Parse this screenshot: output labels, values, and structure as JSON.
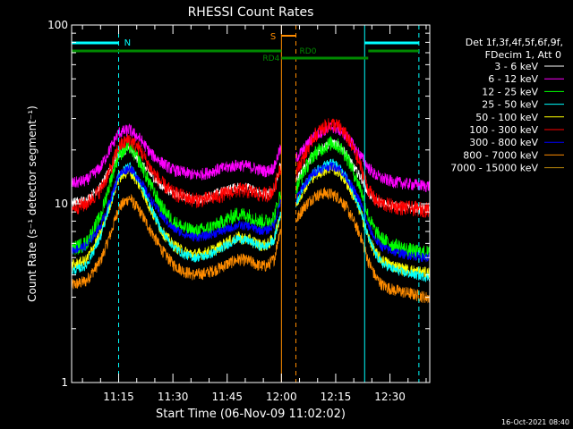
{
  "chart_data": {
    "type": "line",
    "title": "RHESSI Count Rates",
    "xlabel": "Start Time (06-Nov-09 11:02:02)",
    "ylabel": "Count Rate (s⁻¹ detector segment⁻¹)",
    "y_scale": "log",
    "ylim": [
      1,
      100
    ],
    "xlim_minutes": [
      662,
      761
    ],
    "y_ticks": [
      {
        "value": 1,
        "label": "1"
      },
      {
        "value": 10,
        "label": "10"
      },
      {
        "value": 100,
        "label": "100"
      }
    ],
    "x_ticks": [
      {
        "minute": 675,
        "label": "11:15"
      },
      {
        "minute": 690,
        "label": "11:30"
      },
      {
        "minute": 705,
        "label": "11:45"
      },
      {
        "minute": 720,
        "label": "12:00"
      },
      {
        "minute": 735,
        "label": "12:15"
      },
      {
        "minute": 750,
        "label": "12:30"
      }
    ],
    "gaps_minutes": [
      [
        720,
        724
      ]
    ],
    "legend": {
      "placement": "right",
      "header": [
        "Det 1f,3f,4f,5f,6f,9f,",
        "FDecim 1, Att 0"
      ]
    },
    "series": [
      {
        "name": "3 - 6 keV",
        "color": "#ffffff",
        "x": [
          662,
          666,
          670,
          673,
          675,
          678,
          681,
          684,
          687,
          690,
          693,
          696,
          699,
          702,
          705,
          708,
          711,
          714,
          716,
          718,
          719.5,
          724,
          726,
          729,
          732,
          734,
          736,
          738,
          740,
          742,
          744,
          746,
          748,
          751,
          754,
          757,
          760
        ],
        "y": [
          10.2,
          10.5,
          12.5,
          16,
          19,
          20.5,
          17,
          14.5,
          12.5,
          11.5,
          11,
          10.5,
          10.7,
          11.5,
          12,
          12.5,
          12.3,
          11.5,
          11.3,
          12,
          16,
          13.5,
          15.5,
          19,
          21,
          22,
          21,
          19,
          16,
          14,
          11.5,
          10.5,
          10,
          9.8,
          9.6,
          9.5,
          9.3
        ]
      },
      {
        "name": "6 - 12 keV",
        "color": "#ff00ff",
        "x": [
          662,
          666,
          670,
          673,
          675,
          678,
          681,
          684,
          687,
          690,
          693,
          696,
          699,
          702,
          705,
          708,
          711,
          714,
          716,
          718,
          719.5,
          724,
          726,
          729,
          732,
          734,
          736,
          738,
          740,
          742,
          744,
          746,
          748,
          751,
          754,
          757,
          760
        ],
        "y": [
          13,
          13.5,
          16,
          21,
          25,
          26,
          23,
          19,
          17,
          15.5,
          15,
          14.5,
          14.8,
          15.5,
          16,
          16.5,
          16.2,
          15.5,
          15.2,
          16,
          20,
          18,
          20,
          24,
          26,
          27,
          26,
          24,
          21,
          18.5,
          16,
          14.5,
          13.8,
          13.3,
          13,
          12.8,
          12.6
        ]
      },
      {
        "name": "12 - 25 keV",
        "color": "#00ff00",
        "x": [
          662,
          666,
          670,
          673,
          675,
          678,
          681,
          684,
          687,
          690,
          693,
          696,
          699,
          702,
          705,
          708,
          711,
          714,
          716,
          718,
          719.5,
          724,
          726,
          729,
          732,
          734,
          736,
          738,
          740,
          742,
          744,
          746,
          748,
          751,
          754,
          757,
          760
        ],
        "y": [
          5.6,
          6,
          8.5,
          14,
          19,
          21,
          17,
          12.5,
          9.5,
          8,
          7.3,
          7,
          7.2,
          7.6,
          8.2,
          8.8,
          8.6,
          8,
          8,
          8.5,
          11,
          12,
          15,
          19,
          21,
          22,
          21,
          18.5,
          15,
          12,
          8.5,
          7,
          6.3,
          5.9,
          5.6,
          5.4,
          5.3
        ]
      },
      {
        "name": "25 - 50 keV",
        "color": "#00ffff",
        "x": [
          662,
          666,
          670,
          673,
          675,
          678,
          681,
          684,
          687,
          690,
          693,
          696,
          699,
          702,
          705,
          708,
          711,
          714,
          716,
          718,
          719.5,
          724,
          726,
          729,
          732,
          734,
          736,
          738,
          740,
          742,
          744,
          746,
          748,
          751,
          754,
          757,
          760
        ],
        "y": [
          4.2,
          4.5,
          6.5,
          10.5,
          14.5,
          16.5,
          13,
          9.5,
          7,
          5.8,
          5.2,
          5,
          5.1,
          5.4,
          5.9,
          6.4,
          6.2,
          5.8,
          5.8,
          6.3,
          8.5,
          10,
          12.5,
          15,
          16.5,
          17,
          16,
          14,
          11.5,
          9,
          6.5,
          5.2,
          4.6,
          4.3,
          4.1,
          4,
          3.9
        ]
      },
      {
        "name": "50 - 100 keV",
        "color": "#ffff00",
        "x": [
          662,
          666,
          670,
          673,
          675,
          678,
          681,
          684,
          687,
          690,
          693,
          696,
          699,
          702,
          705,
          708,
          711,
          714,
          716,
          718,
          719.5,
          724,
          726,
          729,
          732,
          734,
          736,
          738,
          740,
          742,
          744,
          746,
          748,
          751,
          754,
          757,
          760
        ],
        "y": [
          4.5,
          4.8,
          6.8,
          10.5,
          14,
          15.5,
          12.5,
          9.2,
          7,
          5.9,
          5.4,
          5.2,
          5.3,
          5.6,
          6.1,
          6.5,
          6.3,
          5.9,
          5.9,
          6.4,
          8.5,
          9.8,
          12,
          14.5,
          15.5,
          16,
          15,
          13.2,
          11,
          8.8,
          6.5,
          5.3,
          4.8,
          4.5,
          4.3,
          4.2,
          4.1
        ]
      },
      {
        "name": "100 - 300 keV",
        "color": "#ff0000",
        "x": [
          662,
          666,
          670,
          673,
          675,
          678,
          681,
          684,
          687,
          690,
          693,
          696,
          699,
          702,
          705,
          708,
          711,
          714,
          716,
          718,
          719.5,
          724,
          726,
          729,
          732,
          734,
          736,
          738,
          740,
          742,
          744,
          746,
          748,
          751,
          754,
          757,
          760
        ],
        "y": [
          9.5,
          10,
          12,
          16,
          21,
          23,
          20,
          15.5,
          13,
          11.5,
          11,
          10.5,
          10.6,
          11,
          11.5,
          12,
          11.8,
          11.3,
          11.3,
          12,
          16,
          15,
          18,
          24,
          27,
          28,
          27,
          24,
          20,
          16,
          12,
          10.5,
          10,
          9.7,
          9.5,
          9.4,
          9.3
        ]
      },
      {
        "name": "300 - 800 keV",
        "color": "#0000ff",
        "x": [
          662,
          666,
          670,
          673,
          675,
          678,
          681,
          684,
          687,
          690,
          693,
          696,
          699,
          702,
          705,
          708,
          711,
          714,
          716,
          718,
          719.5,
          724,
          726,
          729,
          732,
          734,
          736,
          738,
          740,
          742,
          744,
          746,
          748,
          751,
          754,
          757,
          760
        ],
        "y": [
          5.5,
          5.8,
          7.5,
          11,
          14.5,
          16,
          13.5,
          10.5,
          8.5,
          7.3,
          6.8,
          6.5,
          6.6,
          6.9,
          7.2,
          7.6,
          7.5,
          7.1,
          7.1,
          7.6,
          10,
          10.5,
          12.5,
          15,
          16,
          16.3,
          15.8,
          14,
          12,
          10,
          7.5,
          6.3,
          5.7,
          5.4,
          5.2,
          5.1,
          5
        ]
      },
      {
        "name": "800 - 7000 keV",
        "color": "#ff8c00",
        "x": [
          662,
          666,
          670,
          673,
          675,
          678,
          681,
          684,
          687,
          690,
          693,
          696,
          699,
          702,
          705,
          708,
          711,
          714,
          716,
          718,
          719.5,
          724,
          726,
          729,
          732,
          734,
          736,
          738,
          740,
          742,
          744,
          746,
          748,
          751,
          754,
          757,
          760
        ],
        "y": [
          3.5,
          3.7,
          4.8,
          7,
          9.5,
          10.8,
          9,
          7,
          5.5,
          4.6,
          4.2,
          4,
          4.1,
          4.3,
          4.6,
          4.9,
          4.8,
          4.5,
          4.5,
          4.9,
          7,
          8,
          9.5,
          11,
          11.5,
          11.3,
          10.8,
          9.5,
          8,
          6.5,
          4.8,
          3.9,
          3.5,
          3.3,
          3.2,
          3.1,
          3
        ]
      }
    ]
  },
  "overlays": {
    "attenuator_label": "S",
    "night_label": "N",
    "rd_labels": [
      "RD4",
      "RD0"
    ],
    "colors": {
      "night": "#00ffff",
      "saa": "#ff8c00",
      "decim": "#008800"
    }
  },
  "timestamp": "16-Oct-2021 08:40"
}
